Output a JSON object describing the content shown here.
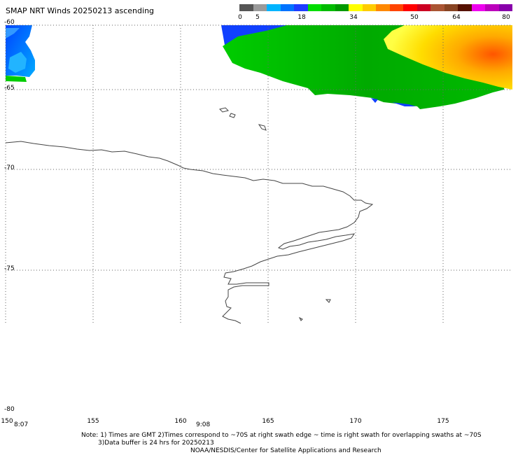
{
  "title": "SMAP NRT Winds 20250213 ascending",
  "colorbar": {
    "labels": [
      "0",
      "5",
      "18",
      "34",
      "50",
      "64",
      "80"
    ],
    "colors": [
      "#555555",
      "#9a9a9a",
      "#00b4ff",
      "#0073ff",
      "#1e3cff",
      "#00dd00",
      "#00bb00",
      "#009900",
      "#ffff00",
      "#ffcc00",
      "#ff8800",
      "#ff4400",
      "#ff0000",
      "#cc0022",
      "#aa5533",
      "#884422",
      "#551100",
      "#ee00ee",
      "#bb00bb",
      "#8800aa"
    ]
  },
  "axes": {
    "lat_labels": [
      "-60",
      "-65",
      "-70",
      "-75",
      "-80"
    ],
    "lon_labels": [
      "150",
      "155",
      "160",
      "165",
      "170",
      "175"
    ]
  },
  "times": [
    "8:07",
    "9:08"
  ],
  "notes": {
    "line1": "Note: 1) Times are GMT 2)Times correspond to ~70S at right swath edge ~ time is right swath for overlapping swaths at ~70S",
    "line2": "3)Data buffer is 24 hrs for 20250213",
    "line3": "NOAA/NESDIS/Center for Satellite Applications and Research"
  }
}
